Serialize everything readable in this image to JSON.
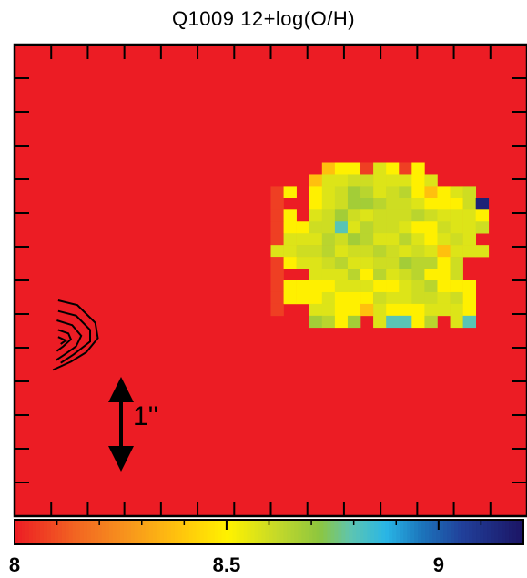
{
  "chart_data": {
    "type": "heatmap",
    "title": "Q1009 12+log(O/H)",
    "background_value": 8,
    "background_color": "#ec1c24",
    "colorbar": {
      "min": 8,
      "max": 9.2,
      "ticks": [
        "8",
        "8.5",
        "9"
      ],
      "tick_values": [
        8,
        8.5,
        9
      ]
    },
    "scale_bar_label": "1''",
    "colormap": [
      [
        0,
        "#ec1c24"
      ],
      [
        0.12,
        "#f26522"
      ],
      [
        0.22,
        "#f7941d"
      ],
      [
        0.32,
        "#ffc20e"
      ],
      [
        0.42,
        "#fff200"
      ],
      [
        0.52,
        "#c2d82b"
      ],
      [
        0.6,
        "#8dc63f"
      ],
      [
        0.66,
        "#5ec5b0"
      ],
      [
        0.73,
        "#29b6e6"
      ],
      [
        0.8,
        "#1c75bc"
      ],
      [
        0.88,
        "#21409a"
      ],
      [
        1,
        "#1b1464"
      ]
    ],
    "grid": {
      "origin_col": 20,
      "origin_row": 10,
      "rows": [
        "    12203202     ",
        "   1334433323    ",
        "02 2346534521234 ",
        "0  23466544322248",
        "02 34643444543332",
        "02244735443224334",
        "0333546533532343 ",
        "33445344543431333",
        "023345334465524  ",
        "0  333525345224  ",
        "0222233322345222 ",
        "0222322243344342 ",
        "0  3322132223332 ",
        "   6526 37725 37 "
      ],
      "levels": {
        "0": 8.07,
        "1": 8.38,
        "2": 8.5,
        "3": 8.57,
        "4": 8.6,
        "5": 8.64,
        "6": 8.68,
        "7": 8.8,
        "8": 9.15
      }
    },
    "contours": [
      {
        "pts": [
          [
            3.4,
            21.7
          ],
          [
            4.9,
            22.1
          ],
          [
            6.3,
            23.6
          ],
          [
            6.5,
            24.9
          ],
          [
            5.6,
            26.1
          ],
          [
            4.4,
            26.9
          ],
          [
            3.0,
            27.6
          ]
        ]
      },
      {
        "pts": [
          [
            3.4,
            22.6
          ],
          [
            4.8,
            23.0
          ],
          [
            5.9,
            24.2
          ],
          [
            5.9,
            25.2
          ],
          [
            4.6,
            26.3
          ],
          [
            3.6,
            27.0
          ]
        ]
      },
      {
        "pts": [
          [
            3.3,
            23.4
          ],
          [
            4.5,
            23.8
          ],
          [
            5.2,
            24.7
          ],
          [
            4.8,
            25.6
          ],
          [
            3.9,
            26.3
          ],
          [
            3.2,
            26.8
          ]
        ]
      },
      {
        "pts": [
          [
            3.4,
            24.2
          ],
          [
            4.2,
            24.5
          ],
          [
            4.4,
            25.0
          ],
          [
            3.8,
            25.6
          ],
          [
            3.3,
            26.0
          ]
        ]
      },
      {
        "pts": [
          [
            3.4,
            24.8
          ],
          [
            4.0,
            25.1
          ],
          [
            3.6,
            25.4
          ]
        ]
      }
    ]
  }
}
